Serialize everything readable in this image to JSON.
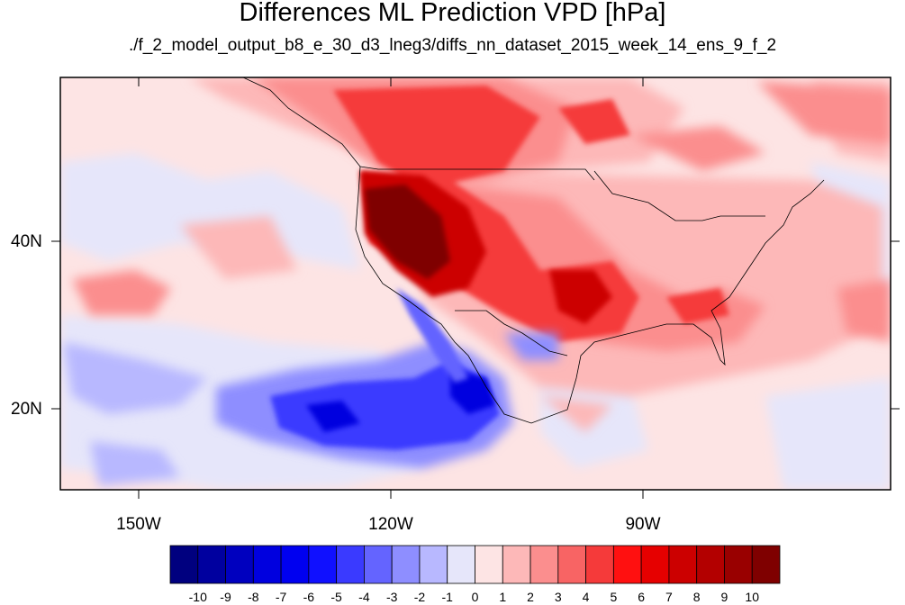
{
  "title": "Differences ML Prediction VPD [hPa]",
  "subtitle": "./f_2_model_output_b8_e_30_d3_lneg3/diffs_nn_dataset_2015_week_14_ens_9_f_2",
  "map": {
    "projection": "cylindrical equidistant",
    "lat_labels": [
      "40N",
      "20N"
    ],
    "lon_labels": [
      "150W",
      "120W",
      "90W"
    ],
    "variable": "VPD difference",
    "units": "hPa"
  },
  "colorbar": {
    "labels": [
      "-10",
      "-9",
      "-8",
      "-7",
      "-6",
      "-5",
      "-4",
      "-3",
      "-2",
      "-1",
      "0",
      "1",
      "2",
      "3",
      "4",
      "5",
      "6",
      "7",
      "8",
      "9",
      "10"
    ],
    "colors": [
      "#00007f",
      "#00009f",
      "#0000bf",
      "#0000df",
      "#0000f0",
      "#1010ff",
      "#3a3aff",
      "#6464ff",
      "#8e8eff",
      "#b8b8ff",
      "#e6e6fa",
      "#fde4e4",
      "#fdb8b8",
      "#fb8e8e",
      "#f86464",
      "#f53a3a",
      "#ff1010",
      "#e60000",
      "#cc0000",
      "#b30000",
      "#990000",
      "#7f0000"
    ]
  }
}
